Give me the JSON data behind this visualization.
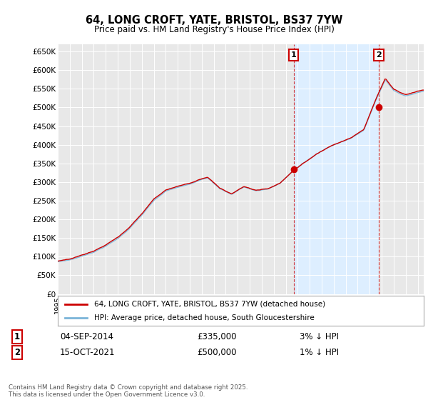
{
  "title": "64, LONG CROFT, YATE, BRISTOL, BS37 7YW",
  "subtitle": "Price paid vs. HM Land Registry's House Price Index (HPI)",
  "ylim": [
    0,
    670000
  ],
  "yticks": [
    0,
    50000,
    100000,
    150000,
    200000,
    250000,
    300000,
    350000,
    400000,
    450000,
    500000,
    550000,
    600000,
    650000
  ],
  "ytick_labels": [
    "£0",
    "£50K",
    "£100K",
    "£150K",
    "£200K",
    "£250K",
    "£300K",
    "£350K",
    "£400K",
    "£450K",
    "£500K",
    "£550K",
    "£600K",
    "£650K"
  ],
  "background_color": "#ffffff",
  "plot_bg_color": "#e8e8e8",
  "hpi_color": "#7ab4d8",
  "price_color": "#cc0000",
  "shade_color": "#ddeeff",
  "sale1_x": 2014.67,
  "sale1_y": 335000,
  "sale1_date": "04-SEP-2014",
  "sale1_price": "£335,000",
  "sale1_note": "3% ↓ HPI",
  "sale2_x": 2021.75,
  "sale2_y": 500000,
  "sale2_date": "15-OCT-2021",
  "sale2_price": "£500,000",
  "sale2_note": "1% ↓ HPI",
  "legend_line1": "64, LONG CROFT, YATE, BRISTOL, BS37 7YW (detached house)",
  "legend_line2": "HPI: Average price, detached house, South Gloucestershire",
  "footer": "Contains HM Land Registry data © Crown copyright and database right 2025.\nThis data is licensed under the Open Government Licence v3.0.",
  "xlim_start": 1995,
  "xlim_end": 2025.5
}
